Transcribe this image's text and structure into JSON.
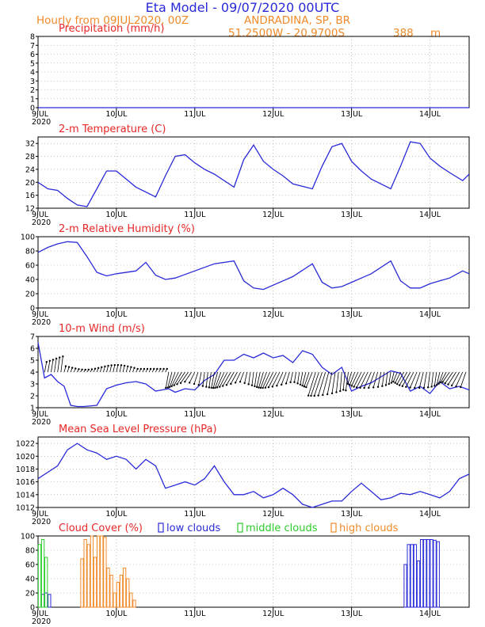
{
  "header": {
    "title": "Eta Model - 09/07/2020 00UTC",
    "subtitle_left": "Hourly from 09JUL2020, 00Z",
    "location": "ANDRADINA, SP, BR",
    "coords": "51.2500W - 20.9700S",
    "elevation": "388",
    "elevation_unit": "m"
  },
  "colors": {
    "line": "#2a2ad8",
    "title_blue": "#2a2ad8",
    "title_orange": "#f08a2a",
    "panel_red": "#e82828",
    "low_clouds": "#2a2ad8",
    "middle_clouds": "#2ccc2c",
    "high_clouds": "#f08a2a"
  },
  "x_axis": {
    "start_label": "9JUL",
    "year": "2020",
    "ticks": [
      "10JUL",
      "11JUL",
      "12JUL",
      "13JUL",
      "14JUL"
    ],
    "range_hours": [
      0,
      132
    ]
  },
  "chart_data": [
    {
      "type": "line",
      "title": "Precipitation (mm/h)",
      "ylim": [
        0,
        8
      ],
      "yticks": [
        0,
        1,
        2,
        3,
        4,
        5,
        6,
        7,
        8
      ],
      "series": [
        {
          "name": "Precipitation",
          "x": [
            0,
            132
          ],
          "values": [
            0,
            0
          ]
        }
      ]
    },
    {
      "type": "line",
      "title": "2-m Temperature (C)",
      "ylim": [
        12,
        34
      ],
      "yticks": [
        12,
        16,
        20,
        24,
        28,
        32
      ],
      "series": [
        {
          "name": "Temperature",
          "x": [
            0,
            3,
            6,
            9,
            12,
            15,
            18,
            21,
            24,
            30,
            36,
            39,
            42,
            45,
            48,
            51,
            54,
            60,
            63,
            66,
            69,
            72,
            75,
            78,
            84,
            87,
            90,
            93,
            96,
            99,
            102,
            108,
            111,
            114,
            117,
            120,
            123,
            126,
            130,
            132
          ],
          "values": [
            20,
            18,
            17.5,
            15,
            13,
            12.5,
            18,
            23.5,
            23.5,
            18.5,
            15.5,
            22,
            28,
            28.5,
            26,
            24,
            22.5,
            18.5,
            27,
            31.5,
            26.5,
            24,
            22,
            19.5,
            18,
            25,
            31,
            32,
            26.5,
            23.5,
            21,
            18,
            25,
            32.5,
            32,
            27.5,
            25,
            23,
            20.5,
            22.5
          ]
        }
      ]
    },
    {
      "type": "line",
      "title": "2-m Relative Humidity (%)",
      "ylim": [
        0,
        100
      ],
      "yticks": [
        0,
        20,
        40,
        60,
        80,
        100
      ],
      "series": [
        {
          "name": "Relative Humidity",
          "x": [
            0,
            3,
            6,
            9,
            12,
            15,
            18,
            21,
            24,
            30,
            33,
            36,
            39,
            42,
            45,
            48,
            51,
            54,
            60,
            63,
            66,
            69,
            72,
            75,
            78,
            84,
            87,
            90,
            93,
            96,
            99,
            102,
            108,
            111,
            114,
            117,
            120,
            123,
            126,
            130,
            132
          ],
          "values": [
            78,
            85,
            90,
            93,
            92,
            72,
            50,
            45,
            48,
            52,
            64,
            46,
            40,
            42,
            47,
            52,
            57,
            62,
            66,
            38,
            28,
            26,
            32,
            38,
            44,
            62,
            36,
            28,
            30,
            36,
            42,
            48,
            66,
            38,
            28,
            28,
            34,
            38,
            42,
            52,
            48
          ]
        }
      ]
    },
    {
      "type": "line",
      "title": "10-m Wind (m/s)",
      "ylim": [
        1,
        7
      ],
      "yticks": [
        1,
        2,
        3,
        4,
        5,
        6,
        7
      ],
      "series": [
        {
          "name": "Wind speed",
          "x": [
            0,
            2,
            4,
            6,
            8,
            10,
            12,
            14,
            18,
            21,
            24,
            27,
            30,
            33,
            36,
            40,
            42,
            45,
            48,
            51,
            54,
            57,
            60,
            63,
            66,
            69,
            72,
            75,
            78,
            81,
            84,
            87,
            90,
            93,
            96,
            99,
            102,
            105,
            108,
            111,
            114,
            117,
            120,
            123,
            126,
            129,
            132
          ],
          "values": [
            6.5,
            3.5,
            3.8,
            3.2,
            2.8,
            1.2,
            1.1,
            1.1,
            1.2,
            2.6,
            2.9,
            3.1,
            3.2,
            3.0,
            2.4,
            2.6,
            2.3,
            2.6,
            2.5,
            3.3,
            3.8,
            5.0,
            5.0,
            5.5,
            5.2,
            5.6,
            5.2,
            5.4,
            4.8,
            5.8,
            5.5,
            4.4,
            3.8,
            4.4,
            2.4,
            2.8,
            3.1,
            3.6,
            4.1,
            3.9,
            2.4,
            2.8,
            2.2,
            3.2,
            2.6,
            2.8,
            2.5
          ]
        }
      ]
    },
    {
      "type": "line",
      "title": "Mean Sea Level Pressure (hPa)",
      "ylim": [
        1012,
        1023
      ],
      "yticks": [
        1012,
        1014,
        1016,
        1018,
        1020,
        1022
      ],
      "series": [
        {
          "name": "MSLP",
          "x": [
            0,
            3,
            6,
            9,
            12,
            15,
            18,
            21,
            24,
            27,
            30,
            33,
            36,
            39,
            42,
            45,
            48,
            51,
            54,
            57,
            60,
            63,
            66,
            69,
            72,
            75,
            78,
            81,
            84,
            87,
            90,
            93,
            96,
            99,
            102,
            105,
            108,
            111,
            114,
            117,
            120,
            123,
            126,
            129,
            132
          ],
          "values": [
            1016.5,
            1017.5,
            1018.5,
            1021.0,
            1022.0,
            1021.0,
            1020.5,
            1019.5,
            1020.0,
            1019.5,
            1018.0,
            1019.5,
            1018.5,
            1015.0,
            1015.5,
            1016.0,
            1015.5,
            1016.5,
            1018.5,
            1016.0,
            1014.0,
            1014.0,
            1014.5,
            1013.5,
            1014.0,
            1015.0,
            1014.0,
            1012.5,
            1012.0,
            1012.5,
            1013.0,
            1013.0,
            1014.5,
            1015.8,
            1014.5,
            1013.2,
            1013.5,
            1014.2,
            1014.0,
            1014.5,
            1014.0,
            1013.5,
            1014.5,
            1016.5,
            1017.2
          ]
        }
      ]
    },
    {
      "type": "bar",
      "title": "Cloud Cover (%)",
      "ylim": [
        0,
        100
      ],
      "yticks": [
        0,
        20,
        40,
        60,
        80,
        100
      ],
      "legend": [
        "low clouds",
        "middle clouds",
        "high clouds"
      ],
      "series": [
        {
          "name": "low clouds",
          "x": [
            1,
            2,
            3,
            112,
            113,
            114,
            115,
            116,
            117,
            118,
            119,
            120,
            121,
            122
          ],
          "values": [
            18,
            20,
            18,
            60,
            88,
            88,
            88,
            65,
            95,
            95,
            95,
            95,
            94,
            92
          ]
        },
        {
          "name": "middle clouds",
          "x": [
            0,
            1,
            2
          ],
          "values": [
            88,
            95,
            70
          ]
        },
        {
          "name": "high clouds",
          "x": [
            13,
            14,
            15,
            16,
            17,
            18,
            19,
            20,
            21,
            22,
            23,
            24,
            25,
            26,
            27,
            28,
            29
          ],
          "values": [
            68,
            95,
            88,
            100,
            70,
            100,
            100,
            98,
            55,
            45,
            20,
            35,
            45,
            55,
            40,
            20,
            10
          ]
        }
      ]
    }
  ]
}
